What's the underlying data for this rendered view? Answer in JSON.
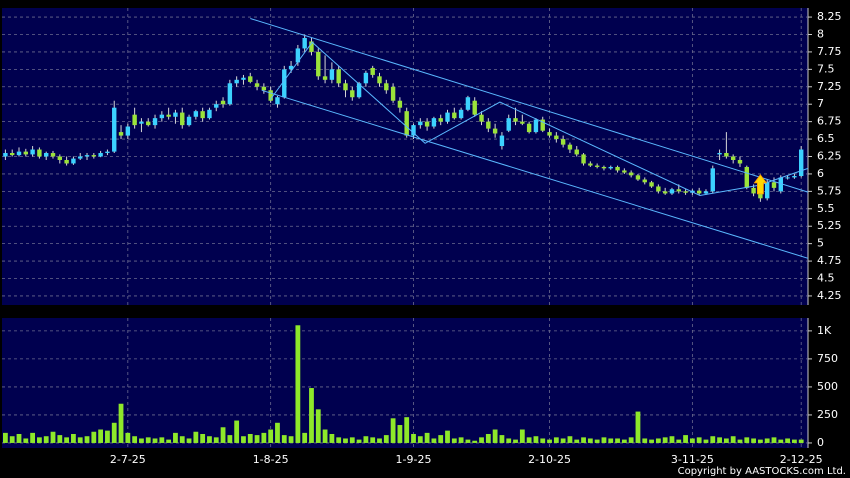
{
  "chart_data": [
    {
      "type": "candlestick",
      "up_color": "#3cd2ff",
      "down_color": "#9be33a",
      "line_color": "#5ab8ff",
      "marker_color": "#ffd700",
      "xlim": [
        -0.5,
        118
      ],
      "ylim": [
        4.12,
        8.38
      ],
      "yticks": [
        4.25,
        4.5,
        4.75,
        5,
        5.25,
        5.5,
        5.75,
        6,
        6.25,
        6.5,
        6.75,
        7,
        7.25,
        7.5,
        7.75,
        8,
        8.25
      ],
      "grid": true,
      "candles": [
        [
          6.25,
          6.35,
          6.2,
          6.3
        ],
        [
          6.3,
          6.35,
          6.25,
          6.27
        ],
        [
          6.27,
          6.38,
          6.25,
          6.32
        ],
        [
          6.32,
          6.36,
          6.25,
          6.28
        ],
        [
          6.28,
          6.4,
          6.25,
          6.35
        ],
        [
          6.35,
          6.38,
          6.22,
          6.25
        ],
        [
          6.25,
          6.32,
          6.2,
          6.3
        ],
        [
          6.3,
          6.33,
          6.22,
          6.25
        ],
        [
          6.25,
          6.28,
          6.15,
          6.2
        ],
        [
          6.2,
          6.25,
          6.12,
          6.15
        ],
        [
          6.15,
          6.25,
          6.13,
          6.22
        ],
        [
          6.22,
          6.3,
          6.2,
          6.25
        ],
        [
          6.25,
          6.3,
          6.2,
          6.27
        ],
        [
          6.27,
          6.3,
          6.22,
          6.25
        ],
        [
          6.25,
          6.33,
          6.24,
          6.3
        ],
        [
          6.3,
          6.35,
          6.27,
          6.32
        ],
        [
          6.32,
          7.05,
          6.3,
          6.95
        ],
        [
          6.6,
          6.7,
          6.5,
          6.55
        ],
        [
          6.55,
          6.72,
          6.5,
          6.68
        ],
        [
          6.85,
          6.95,
          6.65,
          6.7
        ],
        [
          6.72,
          6.8,
          6.6,
          6.75
        ],
        [
          6.75,
          6.8,
          6.68,
          6.7
        ],
        [
          6.7,
          6.85,
          6.65,
          6.8
        ],
        [
          6.8,
          6.9,
          6.75,
          6.85
        ],
        [
          6.85,
          6.95,
          6.78,
          6.82
        ],
        [
          6.82,
          6.92,
          6.72,
          6.88
        ],
        [
          6.88,
          6.95,
          6.65,
          6.7
        ],
        [
          6.7,
          6.85,
          6.68,
          6.82
        ],
        [
          6.82,
          6.92,
          6.78,
          6.9
        ],
        [
          6.9,
          6.95,
          6.75,
          6.8
        ],
        [
          6.8,
          6.95,
          6.78,
          6.92
        ],
        [
          6.95,
          7.05,
          6.9,
          7.0
        ],
        [
          7.05,
          7.1,
          6.95,
          7.0
        ],
        [
          7.0,
          7.35,
          6.98,
          7.3
        ],
        [
          7.3,
          7.4,
          7.25,
          7.35
        ],
        [
          7.35,
          7.42,
          7.28,
          7.38
        ],
        [
          7.4,
          7.45,
          7.3,
          7.32
        ],
        [
          7.3,
          7.35,
          7.2,
          7.25
        ],
        [
          7.25,
          7.3,
          7.15,
          7.2
        ],
        [
          7.2,
          7.25,
          7.02,
          7.05
        ],
        [
          7.0,
          7.12,
          6.95,
          7.1
        ],
        [
          7.1,
          7.55,
          7.08,
          7.5
        ],
        [
          7.5,
          7.62,
          7.45,
          7.55
        ],
        [
          7.6,
          7.85,
          7.55,
          7.8
        ],
        [
          7.8,
          8.0,
          7.75,
          7.95
        ],
        [
          7.9,
          7.95,
          7.7,
          7.75
        ],
        [
          7.75,
          7.8,
          7.35,
          7.4
        ],
        [
          7.4,
          7.7,
          7.3,
          7.35
        ],
        [
          7.35,
          7.6,
          7.3,
          7.5
        ],
        [
          7.5,
          7.55,
          7.25,
          7.3
        ],
        [
          7.3,
          7.35,
          7.1,
          7.2
        ],
        [
          7.2,
          7.25,
          7.05,
          7.1
        ],
        [
          7.1,
          7.32,
          7.08,
          7.3
        ],
        [
          7.3,
          7.48,
          7.25,
          7.45
        ],
        [
          7.52,
          7.55,
          7.38,
          7.42
        ],
        [
          7.4,
          7.45,
          7.25,
          7.3
        ],
        [
          7.3,
          7.35,
          7.15,
          7.2
        ],
        [
          7.25,
          7.3,
          7.02,
          7.05
        ],
        [
          7.05,
          7.1,
          6.88,
          6.95
        ],
        [
          6.9,
          6.95,
          6.52,
          6.55
        ],
        [
          6.55,
          6.72,
          6.5,
          6.7
        ],
        [
          6.7,
          6.8,
          6.65,
          6.75
        ],
        [
          6.75,
          6.8,
          6.62,
          6.68
        ],
        [
          6.68,
          6.82,
          6.65,
          6.8
        ],
        [
          6.8,
          6.85,
          6.7,
          6.75
        ],
        [
          6.75,
          6.92,
          6.72,
          6.88
        ],
        [
          6.88,
          6.95,
          6.78,
          6.8
        ],
        [
          6.8,
          6.95,
          6.78,
          6.92
        ],
        [
          6.92,
          7.12,
          6.9,
          7.1
        ],
        [
          7.05,
          7.1,
          6.82,
          6.85
        ],
        [
          6.85,
          6.9,
          6.7,
          6.75
        ],
        [
          6.75,
          6.8,
          6.6,
          6.65
        ],
        [
          6.65,
          6.72,
          6.52,
          6.58
        ],
        [
          6.4,
          6.6,
          6.35,
          6.55
        ],
        [
          6.62,
          6.85,
          6.6,
          6.8
        ],
        [
          6.8,
          6.95,
          6.7,
          6.75
        ],
        [
          6.75,
          6.85,
          6.7,
          6.72
        ],
        [
          6.72,
          6.75,
          6.58,
          6.6
        ],
        [
          6.6,
          6.8,
          6.58,
          6.78
        ],
        [
          6.78,
          6.82,
          6.6,
          6.62
        ],
        [
          6.6,
          6.65,
          6.52,
          6.55
        ],
        [
          6.55,
          6.6,
          6.45,
          6.5
        ],
        [
          6.5,
          6.55,
          6.38,
          6.42
        ],
        [
          6.42,
          6.45,
          6.3,
          6.35
        ],
        [
          6.35,
          6.4,
          6.25,
          6.28
        ],
        [
          6.28,
          6.3,
          6.12,
          6.15
        ],
        [
          6.15,
          6.18,
          6.1,
          6.12
        ],
        [
          6.12,
          6.15,
          6.08,
          6.1
        ],
        [
          6.1,
          6.12,
          6.05,
          6.08
        ],
        [
          6.08,
          6.12,
          6.06,
          6.1
        ],
        [
          6.1,
          6.12,
          6.02,
          6.05
        ],
        [
          6.05,
          6.08,
          6.0,
          6.02
        ],
        [
          6.02,
          6.05,
          5.95,
          5.98
        ],
        [
          5.98,
          6.0,
          5.9,
          5.92
        ],
        [
          5.92,
          5.95,
          5.85,
          5.88
        ],
        [
          5.88,
          5.9,
          5.8,
          5.82
        ],
        [
          5.82,
          5.85,
          5.72,
          5.75
        ],
        [
          5.75,
          5.8,
          5.7,
          5.72
        ],
        [
          5.72,
          5.8,
          5.7,
          5.78
        ],
        [
          5.78,
          5.85,
          5.72,
          5.75
        ],
        [
          5.75,
          5.78,
          5.7,
          5.73
        ],
        [
          5.73,
          5.78,
          5.7,
          5.76
        ],
        [
          5.76,
          5.8,
          5.7,
          5.72
        ],
        [
          5.72,
          5.78,
          5.7,
          5.75
        ],
        [
          5.75,
          6.12,
          5.72,
          6.08
        ],
        [
          6.28,
          6.35,
          6.2,
          6.3
        ],
        [
          6.3,
          6.6,
          6.22,
          6.25
        ],
        [
          6.25,
          6.28,
          6.15,
          6.2
        ],
        [
          6.2,
          6.25,
          6.1,
          6.15
        ],
        [
          6.1,
          6.12,
          5.78,
          5.8
        ],
        [
          5.8,
          5.85,
          5.68,
          5.72
        ],
        [
          5.72,
          5.8,
          5.6,
          5.65
        ],
        [
          5.65,
          5.92,
          5.62,
          5.88
        ],
        [
          5.88,
          5.95,
          5.75,
          5.8
        ],
        [
          5.75,
          5.98,
          5.72,
          5.95
        ],
        [
          5.95,
          5.98,
          5.92,
          5.95
        ],
        [
          5.95,
          6.0,
          5.93,
          5.97
        ],
        [
          5.97,
          6.4,
          5.95,
          6.35
        ]
      ],
      "trendlines": [
        [
          [
            36,
            8.23
          ],
          [
            118,
            5.74
          ]
        ],
        [
          [
            37.7,
            7.2
          ],
          [
            118,
            4.79
          ]
        ],
        [
          [
            38.9,
            7.06
          ],
          [
            45.1,
            7.89
          ],
          [
            61.7,
            6.44
          ],
          [
            72.7,
            7.03
          ],
          [
            102.1,
            5.69
          ],
          [
            110.9,
            5.84
          ],
          [
            118,
            6.08
          ]
        ]
      ],
      "marker": {
        "x": 111,
        "y": 5.7
      }
    },
    {
      "type": "bar",
      "color": "#8ee82a",
      "xlim": [
        -0.5,
        118
      ],
      "ylim": [
        -45,
        1115
      ],
      "yticks": [
        0,
        250,
        500,
        750,
        {
          "value": 1000,
          "label": "1K"
        }
      ],
      "xticks": [
        {
          "value": 18,
          "label": "2-7-25"
        },
        {
          "value": 39,
          "label": "1-8-25"
        },
        {
          "value": 60,
          "label": "1-9-25"
        },
        {
          "value": 80,
          "label": "2-10-25"
        },
        {
          "value": 101,
          "label": "3-11-25"
        },
        {
          "value": 117,
          "label": "2-12-25"
        }
      ],
      "values": [
        90,
        60,
        80,
        40,
        90,
        50,
        60,
        100,
        70,
        50,
        80,
        50,
        60,
        100,
        120,
        110,
        180,
        350,
        90,
        60,
        40,
        50,
        40,
        50,
        30,
        90,
        60,
        40,
        100,
        80,
        60,
        50,
        140,
        70,
        200,
        60,
        80,
        70,
        90,
        120,
        180,
        70,
        60,
        1050,
        90,
        490,
        300,
        120,
        80,
        50,
        40,
        50,
        30,
        60,
        50,
        40,
        70,
        220,
        160,
        230,
        80,
        60,
        90,
        40,
        70,
        110,
        40,
        50,
        30,
        20,
        50,
        80,
        120,
        70,
        40,
        30,
        120,
        50,
        60,
        40,
        30,
        50,
        40,
        60,
        30,
        50,
        40,
        30,
        50,
        40,
        40,
        30,
        50,
        280,
        40,
        30,
        40,
        50,
        60,
        30,
        70,
        40,
        50,
        30,
        60,
        50,
        40,
        60,
        30,
        50,
        40,
        30,
        40,
        50,
        30,
        40,
        30,
        30
      ]
    }
  ],
  "footer": "Copyright by AASTOCKS.com Ltd."
}
